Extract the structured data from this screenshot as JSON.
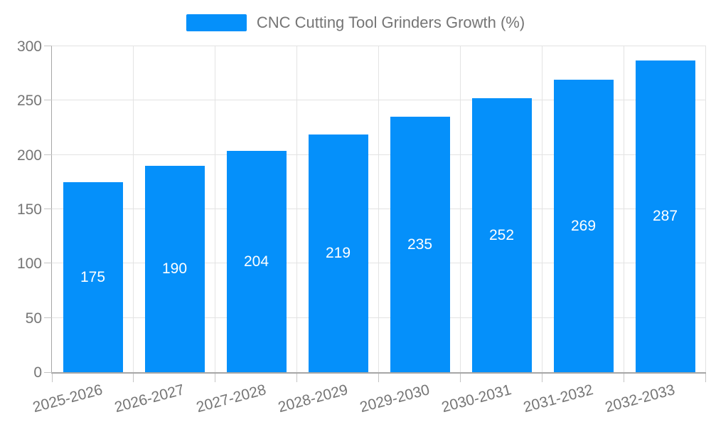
{
  "chart_data": {
    "type": "bar",
    "title": "CNC Cutting Tool Grinders Growth (%)",
    "legend": {
      "label": "CNC Cutting Tool Grinders Growth (%)",
      "position": "top-center"
    },
    "categories": [
      "2025-2026",
      "2026-2027",
      "2027-2028",
      "2028-2029",
      "2029-2030",
      "2030-2031",
      "2031-2032",
      "2032-2033"
    ],
    "values": [
      175,
      190,
      204,
      219,
      235,
      252,
      269,
      287
    ],
    "xlabel": "",
    "ylabel": "",
    "ylim": [
      0,
      300
    ],
    "yticks": [
      0,
      50,
      100,
      150,
      200,
      250,
      300
    ],
    "grid": true,
    "legend_position": "top",
    "x_label_rotation_deg": -15,
    "colors": {
      "bar": "#0590fa",
      "bar_value_text": "#ffffff",
      "axis_line": "#a6a6a6",
      "gridline": "#e3e3e3",
      "tick": "#c4c4c4",
      "axis_text": "#757575",
      "background": "#ffffff"
    }
  }
}
